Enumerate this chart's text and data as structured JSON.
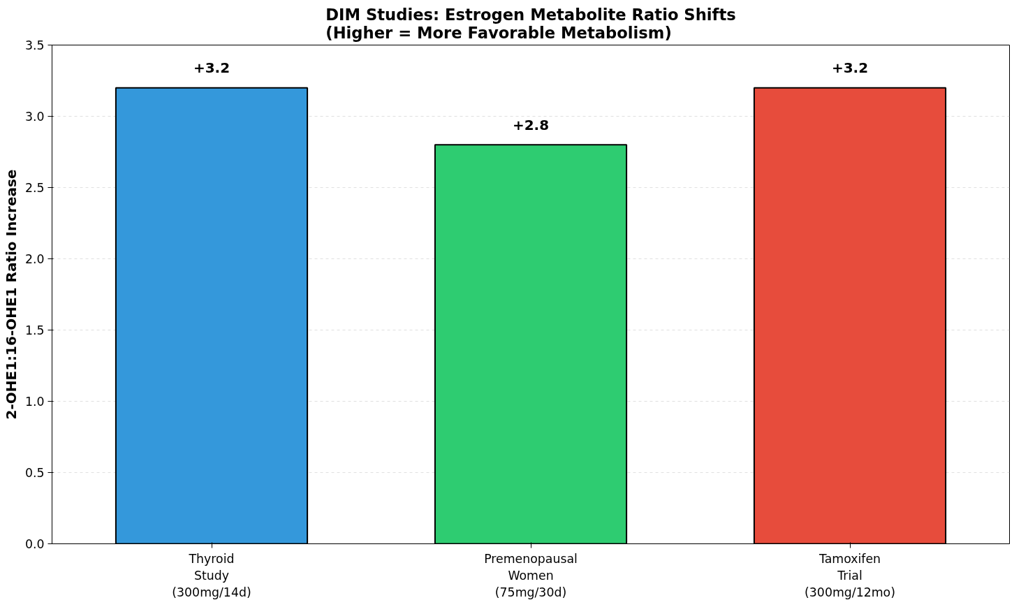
{
  "chart_data": {
    "type": "bar",
    "title": "DIM Studies: Estrogen Metabolite Ratio Shifts\n(Higher = More Favorable Metabolism)",
    "ylabel": "2-OHE1:16-OHE1 Ratio Increase",
    "categories": [
      "Thyroid\nStudy\n(300mg/14d)",
      "Premenopausal\nWomen\n(75mg/30d)",
      "Tamoxifen\nTrial\n(300mg/12mo)"
    ],
    "values": [
      3.2,
      2.8,
      3.2
    ],
    "colors": [
      "#3498db",
      "#2ecc71",
      "#e74c3c"
    ],
    "value_labels": [
      "+3.2",
      "+2.8",
      "+3.2"
    ],
    "ylim": [
      0,
      3.5
    ],
    "yticks": [
      {
        "value": 0,
        "label": "0.0"
      },
      {
        "value": 0.5,
        "label": "0.5"
      },
      {
        "value": 1,
        "label": "1.0"
      },
      {
        "value": 1.5,
        "label": "1.5"
      },
      {
        "value": 2,
        "label": "2.0"
      },
      {
        "value": 2.5,
        "label": "2.5"
      },
      {
        "value": 3,
        "label": "3.0"
      },
      {
        "value": 3.5,
        "label": "3.5"
      }
    ],
    "grid": "y"
  }
}
